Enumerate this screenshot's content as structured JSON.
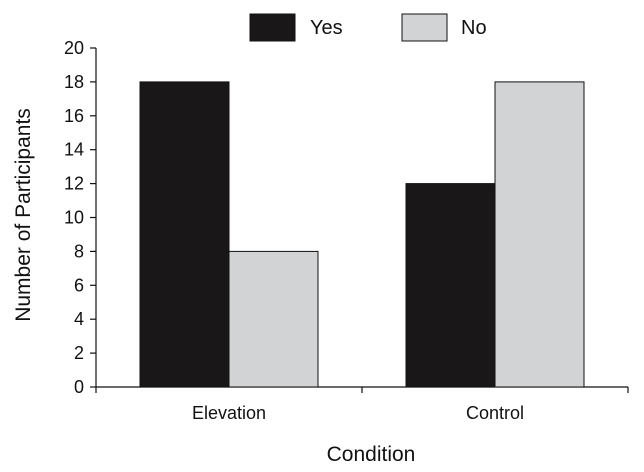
{
  "chart_data": {
    "type": "bar",
    "title": "",
    "xlabel": "Condition",
    "ylabel": "Number of Participants",
    "categories": [
      "Elevation",
      "Control"
    ],
    "series": [
      {
        "name": "Yes",
        "color": "#1a1718",
        "values": [
          18,
          12
        ]
      },
      {
        "name": "No",
        "color": "#d2d3d5",
        "values": [
          8,
          18
        ]
      }
    ],
    "ylim": [
      0,
      20
    ],
    "yticks": [
      "0",
      "2",
      "4",
      "6",
      "8",
      "10",
      "12",
      "14",
      "16",
      "18",
      "20"
    ],
    "grid": false,
    "legend_position": "top-center"
  }
}
